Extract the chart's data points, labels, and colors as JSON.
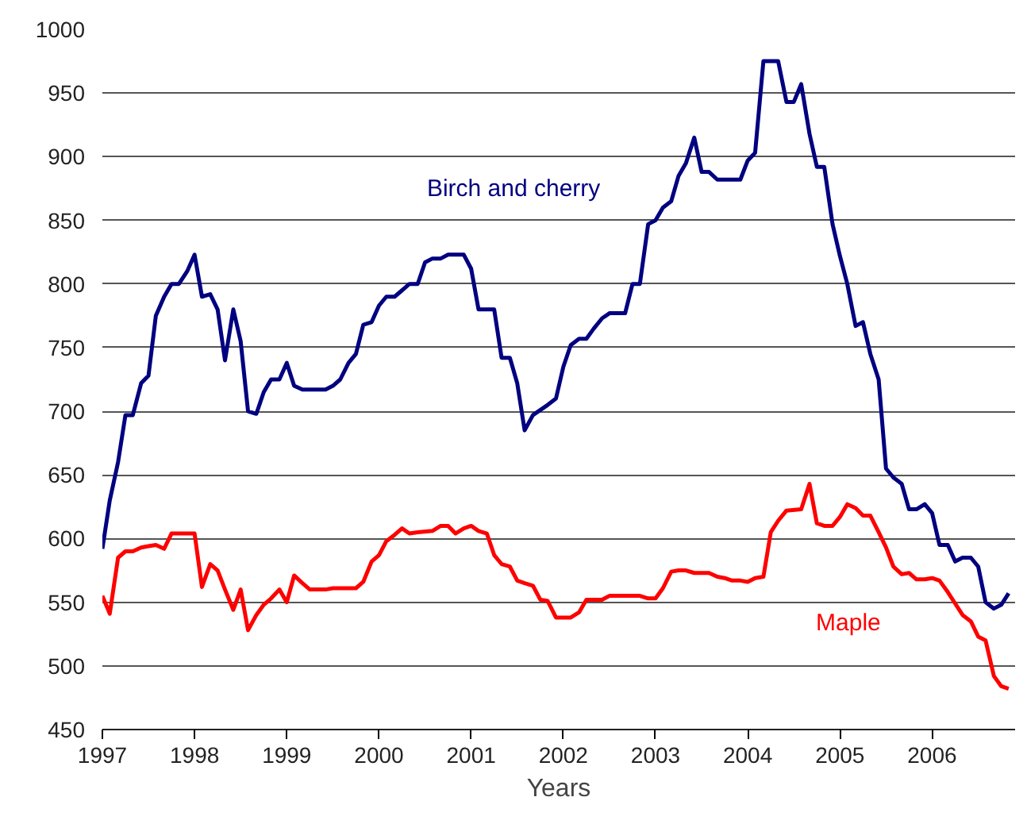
{
  "chart_data": {
    "type": "line",
    "xlabel": "Years",
    "xlim": [
      1997,
      2006.9
    ],
    "xticks": [
      1997,
      1998,
      1999,
      2000,
      2001,
      2002,
      2003,
      2004,
      2005,
      2006
    ],
    "ylim": [
      450,
      1000
    ],
    "yticks": [
      450,
      500,
      550,
      600,
      650,
      700,
      750,
      800,
      850,
      900,
      950,
      1000
    ],
    "grid": "y",
    "marker": "none",
    "line_style": "solid",
    "series": [
      {
        "name": "Birch and cherry",
        "color": "#000080",
        "x": [
          1997.0,
          1997.08,
          1997.17,
          1997.25,
          1997.33,
          1997.42,
          1997.5,
          1997.58,
          1997.67,
          1997.75,
          1997.83,
          1997.92,
          1998.0,
          1998.08,
          1998.17,
          1998.25,
          1998.33,
          1998.42,
          1998.5,
          1998.58,
          1998.67,
          1998.75,
          1998.83,
          1998.92,
          1999.0,
          1999.08,
          1999.17,
          1999.33,
          1999.42,
          1999.5,
          1999.58,
          1999.67,
          1999.75,
          1999.83,
          1999.92,
          2000.0,
          2000.08,
          2000.17,
          2000.25,
          2000.33,
          2000.42,
          2000.5,
          2000.58,
          2000.67,
          2000.75,
          2000.92,
          2001.0,
          2001.08,
          2001.25,
          2001.33,
          2001.42,
          2001.5,
          2001.58,
          2001.67,
          2001.83,
          2001.92,
          2002.0,
          2002.08,
          2002.17,
          2002.25,
          2002.33,
          2002.42,
          2002.5,
          2002.67,
          2002.75,
          2002.83,
          2002.92,
          2003.0,
          2003.08,
          2003.17,
          2003.25,
          2003.33,
          2003.42,
          2003.5,
          2003.58,
          2003.67,
          2003.92,
          2004.0,
          2004.08,
          2004.17,
          2004.33,
          2004.42,
          2004.5,
          2004.58,
          2004.67,
          2004.75,
          2004.83,
          2004.92,
          2005.0,
          2005.08,
          2005.17,
          2005.25,
          2005.33,
          2005.42,
          2005.5,
          2005.58,
          2005.67,
          2005.75,
          2005.83,
          2005.92,
          2006.0,
          2006.08,
          2006.17,
          2006.25,
          2006.33,
          2006.42,
          2006.5,
          2006.58,
          2006.67,
          2006.75,
          2006.83
        ],
        "values": [
          592,
          630,
          660,
          697,
          697,
          722,
          728,
          775,
          790,
          800,
          800,
          810,
          823,
          790,
          792,
          780,
          740,
          780,
          755,
          700,
          698,
          715,
          725,
          725,
          738,
          720,
          717,
          717,
          717,
          720,
          725,
          738,
          745,
          768,
          770,
          783,
          790,
          790,
          795,
          800,
          800,
          817,
          820,
          820,
          823,
          823,
          812,
          780,
          780,
          742,
          742,
          722,
          685,
          697,
          705,
          710,
          735,
          752,
          757,
          757,
          765,
          773,
          777,
          777,
          800,
          800,
          847,
          850,
          860,
          865,
          885,
          895,
          915,
          888,
          888,
          882,
          882,
          897,
          903,
          975,
          975,
          943,
          943,
          957,
          918,
          892,
          892,
          847,
          822,
          800,
          767,
          770,
          745,
          725,
          655,
          648,
          643,
          623,
          623,
          627,
          620,
          595,
          595,
          582,
          585,
          585,
          578,
          550,
          545,
          548,
          557
        ]
      },
      {
        "name": "Maple",
        "color": "#ff0000",
        "x": [
          1997.0,
          1997.08,
          1997.17,
          1997.25,
          1997.33,
          1997.42,
          1997.5,
          1997.58,
          1997.67,
          1997.75,
          1998.0,
          1998.08,
          1998.17,
          1998.25,
          1998.33,
          1998.42,
          1998.5,
          1998.58,
          1998.67,
          1998.75,
          1998.83,
          1998.92,
          1999.0,
          1999.08,
          1999.17,
          1999.25,
          1999.42,
          1999.5,
          1999.75,
          1999.83,
          1999.92,
          2000.0,
          2000.08,
          2000.17,
          2000.25,
          2000.33,
          2000.42,
          2000.58,
          2000.67,
          2000.75,
          2000.83,
          2000.92,
          2001.0,
          2001.08,
          2001.17,
          2001.25,
          2001.33,
          2001.42,
          2001.5,
          2001.58,
          2001.67,
          2001.75,
          2001.83,
          2001.92,
          2002.08,
          2002.17,
          2002.25,
          2002.42,
          2002.5,
          2002.83,
          2002.92,
          2003.0,
          2003.08,
          2003.17,
          2003.25,
          2003.33,
          2003.42,
          2003.58,
          2003.67,
          2003.75,
          2003.83,
          2003.92,
          2004.0,
          2004.08,
          2004.17,
          2004.25,
          2004.33,
          2004.42,
          2004.58,
          2004.67,
          2004.75,
          2004.83,
          2004.92,
          2005.0,
          2005.08,
          2005.17,
          2005.25,
          2005.33,
          2005.42,
          2005.5,
          2005.58,
          2005.67,
          2005.75,
          2005.83,
          2005.92,
          2006.0,
          2006.08,
          2006.17,
          2006.25,
          2006.33,
          2006.42,
          2006.5,
          2006.58,
          2006.67,
          2006.75,
          2006.83
        ],
        "values": [
          555,
          541,
          585,
          590,
          590,
          593,
          594,
          595,
          592,
          604,
          604,
          562,
          580,
          575,
          560,
          544,
          560,
          528,
          540,
          548,
          553,
          560,
          550,
          571,
          565,
          560,
          560,
          561,
          561,
          566,
          582,
          587,
          598,
          603,
          608,
          604,
          605,
          606,
          610,
          610,
          604,
          608,
          610,
          606,
          604,
          587,
          580,
          578,
          567,
          565,
          563,
          552,
          551,
          538,
          538,
          542,
          552,
          552,
          555,
          555,
          553,
          553,
          561,
          574,
          575,
          575,
          573,
          573,
          570,
          569,
          567,
          567,
          566,
          569,
          570,
          605,
          614,
          622,
          623,
          643,
          612,
          610,
          610,
          617,
          627,
          624,
          618,
          618,
          605,
          593,
          578,
          572,
          573,
          568,
          568,
          569,
          567,
          558,
          549,
          540,
          535,
          523,
          520,
          492,
          484,
          482
        ]
      }
    ]
  }
}
